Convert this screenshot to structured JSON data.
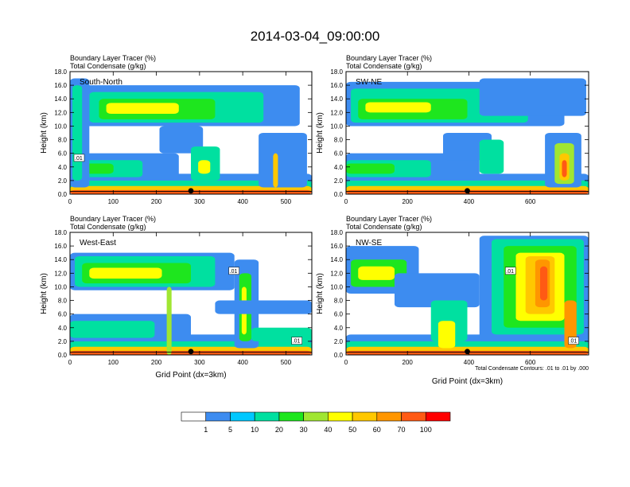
{
  "figure": {
    "title": "2014-03-04_09:00:00"
  },
  "chart_data": [
    {
      "type": "heatmap",
      "subtitle_line1": "Boundary Layer Tracer   (%)",
      "subtitle_line2": "Total Condensate   (g/kg)",
      "panel_label": "South-North",
      "ylabel": "Height (km)",
      "xlabel": "",
      "ylim": [
        0,
        18
      ],
      "yticks": [
        "0.0",
        "2.0",
        "4.0",
        "6.0",
        "8.0",
        "10.0",
        "12.0",
        "14.0",
        "16.0",
        "18.0"
      ],
      "xlim": [
        0,
        560
      ],
      "xticks": [
        "0",
        "100",
        "200",
        "300",
        "400",
        "500"
      ],
      "contour_labels": [
        ".01"
      ],
      "footnote": ""
    },
    {
      "type": "heatmap",
      "subtitle_line1": "Boundary Layer Tracer   (%)",
      "subtitle_line2": "Total Condensate   (g/kg)",
      "panel_label": "SW-NE",
      "ylabel": "Height (km)",
      "xlabel": "",
      "ylim": [
        0,
        18
      ],
      "yticks": [
        "0.0",
        "2.0",
        "4.0",
        "6.0",
        "8.0",
        "10.0",
        "12.0",
        "14.0",
        "16.0",
        "18.0"
      ],
      "xlim": [
        0,
        790
      ],
      "xticks": [
        "0",
        "200",
        "400",
        "600"
      ],
      "contour_labels": [],
      "footnote": ""
    },
    {
      "type": "heatmap",
      "subtitle_line1": "Boundary Layer Tracer   (%)",
      "subtitle_line2": "Total Condensate   (g/kg)",
      "panel_label": "West-East",
      "ylabel": "Height (km)",
      "xlabel": "Grid Point (dx=3km)",
      "ylim": [
        0,
        18
      ],
      "yticks": [
        "0.0",
        "2.0",
        "4.0",
        "6.0",
        "8.0",
        "10.0",
        "12.0",
        "14.0",
        "16.0",
        "18.0"
      ],
      "xlim": [
        0,
        560
      ],
      "xticks": [
        "0",
        "100",
        "200",
        "300",
        "400",
        "500"
      ],
      "contour_labels": [
        ".01",
        ".01"
      ],
      "footnote": ""
    },
    {
      "type": "heatmap",
      "subtitle_line1": "Boundary Layer Tracer   (%)",
      "subtitle_line2": "Total Condensate   (g/kg)",
      "panel_label": "NW-SE",
      "ylabel": "Height (km)",
      "xlabel": "Grid Point (dx=3km)",
      "ylim": [
        0,
        18
      ],
      "yticks": [
        "0.0",
        "2.0",
        "4.0",
        "6.0",
        "8.0",
        "10.0",
        "12.0",
        "14.0",
        "16.0",
        "18.0"
      ],
      "xlim": [
        0,
        790
      ],
      "xticks": [
        "0",
        "200",
        "400",
        "600"
      ],
      "contour_labels": [
        ".01",
        ".01"
      ],
      "footnote": "Total Condensate Contours: .01 to .01 by .000"
    }
  ],
  "colorbar": {
    "labels": [
      "1",
      "5",
      "10",
      "20",
      "30",
      "40",
      "50",
      "60",
      "70",
      "100"
    ],
    "colors": [
      "#ffffff",
      "#3d8cf0",
      "#00c8ff",
      "#00e0a0",
      "#1ee61e",
      "#a0e632",
      "#ffff00",
      "#ffc800",
      "#ff9600",
      "#ff5a14",
      "#ff0000"
    ]
  }
}
